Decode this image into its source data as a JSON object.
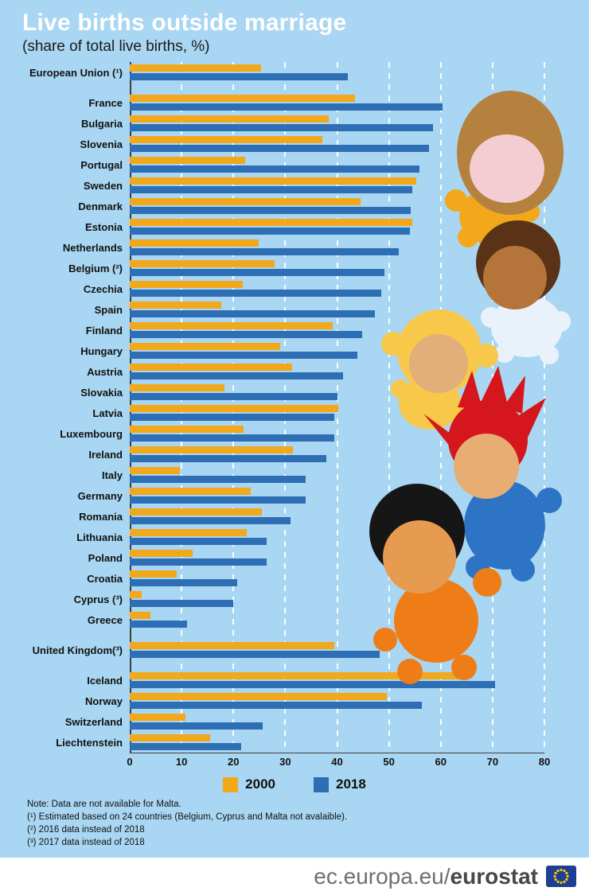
{
  "title": "Live births outside marriage",
  "subtitle": "(share of total live births, %)",
  "chart_data": {
    "type": "bar",
    "orientation": "horizontal",
    "title": "Live births outside marriage",
    "subtitle": "(share of total live births, %)",
    "xlim": [
      0,
      80
    ],
    "ticks": [
      0,
      10,
      20,
      30,
      40,
      50,
      60,
      70,
      80
    ],
    "grid": "dashed-vertical-white",
    "legend_position": "bottom",
    "background_color": "#a9d6f2",
    "series": [
      {
        "name": "2000",
        "color": "#f3a71b"
      },
      {
        "name": "2018",
        "color": "#2d6eb5"
      }
    ],
    "rows": [
      {
        "label": "European Union (¹)",
        "values": [
          25.3,
          42.1
        ],
        "gap_after": true
      },
      {
        "label": "France",
        "values": [
          43.4,
          60.4
        ]
      },
      {
        "label": "Bulgaria",
        "values": [
          38.4,
          58.5
        ]
      },
      {
        "label": "Slovenia",
        "values": [
          37.1,
          57.7
        ]
      },
      {
        "label": "Portugal",
        "values": [
          22.2,
          55.9
        ]
      },
      {
        "label": "Sweden",
        "values": [
          55.3,
          54.5
        ]
      },
      {
        "label": "Denmark",
        "values": [
          44.6,
          54.2
        ]
      },
      {
        "label": "Estonia",
        "values": [
          54.5,
          54.1
        ]
      },
      {
        "label": "Netherlands",
        "values": [
          24.9,
          51.9
        ]
      },
      {
        "label": "Belgium (²)",
        "values": [
          28.0,
          49.1
        ]
      },
      {
        "label": "Czechia",
        "values": [
          21.8,
          48.5
        ]
      },
      {
        "label": "Spain",
        "values": [
          17.7,
          47.3
        ]
      },
      {
        "label": "Finland",
        "values": [
          39.2,
          44.9
        ]
      },
      {
        "label": "Hungary",
        "values": [
          29.0,
          43.9
        ]
      },
      {
        "label": "Austria",
        "values": [
          31.3,
          41.2
        ]
      },
      {
        "label": "Slovakia",
        "values": [
          18.3,
          40.0
        ]
      },
      {
        "label": "Latvia",
        "values": [
          40.3,
          39.5
        ]
      },
      {
        "label": "Luxembourg",
        "values": [
          21.9,
          39.4
        ]
      },
      {
        "label": "Ireland",
        "values": [
          31.5,
          37.9
        ]
      },
      {
        "label": "Italy",
        "values": [
          9.7,
          34.0
        ]
      },
      {
        "label": "Germany",
        "values": [
          23.4,
          33.9
        ]
      },
      {
        "label": "Romania",
        "values": [
          25.5,
          31.0
        ]
      },
      {
        "label": "Lithuania",
        "values": [
          22.6,
          26.4
        ]
      },
      {
        "label": "Poland",
        "values": [
          12.1,
          26.4
        ]
      },
      {
        "label": "Croatia",
        "values": [
          9.0,
          20.8
        ]
      },
      {
        "label": "Cyprus (³)",
        "values": [
          2.3,
          19.9
        ]
      },
      {
        "label": "Greece",
        "values": [
          4.0,
          11.1
        ],
        "gap_after": true
      },
      {
        "label": "United Kingdom(³)",
        "values": [
          39.5,
          48.2
        ],
        "gap_after": true
      },
      {
        "label": "Iceland",
        "values": [
          65.2,
          70.5
        ]
      },
      {
        "label": "Norway",
        "values": [
          49.6,
          56.4
        ]
      },
      {
        "label": "Switzerland",
        "values": [
          10.7,
          25.7
        ]
      },
      {
        "label": "Liechtenstein",
        "values": [
          15.5,
          21.5
        ]
      }
    ]
  },
  "notes": [
    "Note: Data are not available for Malta.",
    "(¹) Estimated based on 24 countries (Belgium, Cyprus and Malta not avalaible).",
    "(²) 2016 data instead of 2018",
    "(³) 2017 data instead of 2018"
  ],
  "footer": {
    "url_prefix": "ec.europa.eu/",
    "brand": "eurostat"
  }
}
